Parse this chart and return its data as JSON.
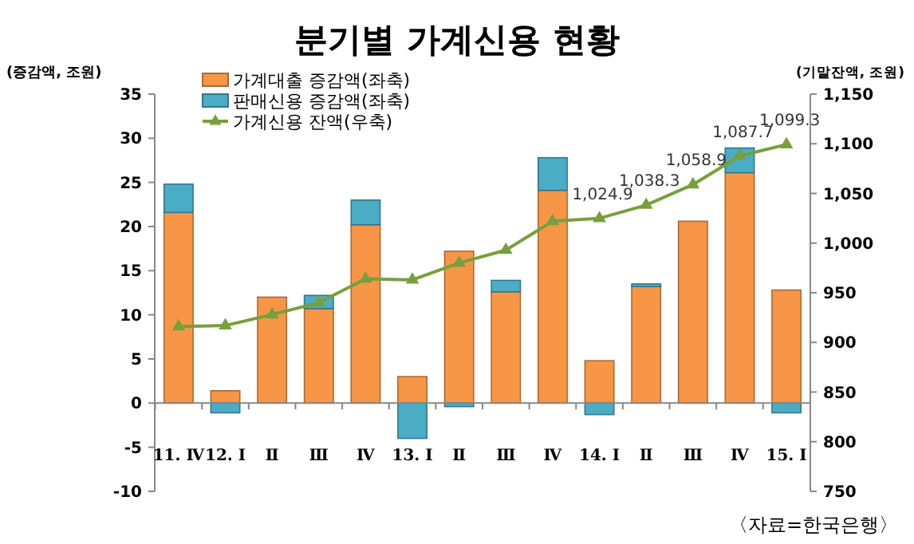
{
  "chart_data": {
    "type": "bar",
    "stacked": true,
    "title": "분기별 가계신용 현황",
    "ylabel": "(증감액, 조원)",
    "y2label": "(기말잔액, 조원)",
    "categories": [
      "11. Ⅳ",
      "12. Ⅰ",
      "Ⅱ",
      "Ⅲ",
      "Ⅳ",
      "13. Ⅰ",
      "Ⅱ",
      "Ⅲ",
      "Ⅳ",
      "14. Ⅰ",
      "Ⅱ",
      "Ⅲ",
      "Ⅳ",
      "15. Ⅰ"
    ],
    "series": [
      {
        "name": "가계대출 증감액(좌축)",
        "color": "#f79646",
        "values": [
          21.6,
          1.4,
          12.0,
          10.7,
          20.2,
          3.0,
          17.2,
          12.6,
          24.1,
          4.8,
          13.2,
          20.6,
          26.1,
          12.8
        ]
      },
      {
        "name": "판매신용 증감액(좌축)",
        "color": "#4bacc6",
        "values": [
          3.2,
          -1.1,
          0,
          1.5,
          2.8,
          -4.0,
          -0.4,
          1.3,
          3.7,
          -1.3,
          0.3,
          0,
          2.8,
          -1.1
        ]
      },
      {
        "name": "가계신용 잔액(우축)",
        "type": "line",
        "axis": "y2",
        "color": "#77a03c",
        "marker": "triangle",
        "values": [
          916,
          917,
          928,
          940,
          964,
          963,
          980,
          993,
          1022,
          1024.9,
          1038.3,
          1058.9,
          1087.7,
          1099.3
        ],
        "value_labels": [
          null,
          null,
          null,
          null,
          null,
          null,
          null,
          null,
          null,
          "1,024.9",
          "1,038.3",
          "1,058.9",
          "1,087.7",
          "1,099.3"
        ]
      }
    ],
    "ylim": [
      -10,
      35
    ],
    "yticks": [
      -10,
      -5,
      0,
      5,
      10,
      15,
      20,
      25,
      30,
      35
    ],
    "y2lim": [
      750,
      1150
    ],
    "y2ticks": [
      750,
      800,
      850,
      900,
      950,
      {
        "value": 1000,
        "label": "1,000"
      },
      {
        "value": 1050,
        "label": "1,050"
      },
      {
        "value": 1100,
        "label": "1,100"
      },
      {
        "value": 1150,
        "label": "1,150"
      }
    ],
    "legend": "top left",
    "annotations": [
      "〈자료=한국은행〉"
    ]
  }
}
